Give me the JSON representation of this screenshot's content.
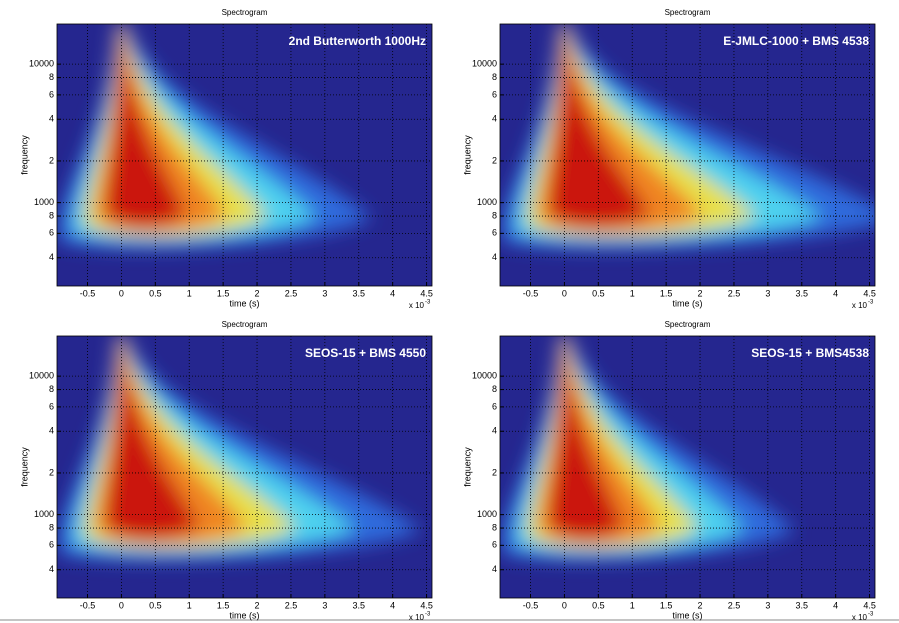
{
  "chart_data": [
    {
      "type": "heatmap",
      "title": "Spectrogram",
      "annotation": "2nd Butterworth 1000Hz",
      "xlabel": "time (s)",
      "ylabel": "frequency",
      "x_multiplier": {
        "base": "x 10",
        "power": "-3"
      },
      "xlim": [
        -0.95,
        4.58
      ],
      "xticks": [
        -0.5,
        0,
        0.5,
        1,
        1.5,
        2,
        2.5,
        3,
        3.5,
        4,
        4.5
      ],
      "ylim": [
        250,
        19500
      ],
      "log_y": true,
      "grid": true,
      "yticks": [
        {
          "value": 400,
          "label": "4"
        },
        {
          "value": 600,
          "label": "6"
        },
        {
          "value": 800,
          "label": "8"
        },
        1000,
        {
          "value": 2000,
          "label": "2"
        },
        {
          "value": 4000,
          "label": "4"
        },
        {
          "value": 6000,
          "label": "6"
        },
        {
          "value": 8000,
          "label": "8"
        },
        10000
      ]
    },
    {
      "type": "heatmap",
      "title": "Spectrogram",
      "annotation": "E-JMLC-1000 + BMS 4538",
      "xlabel": "time (s)",
      "ylabel": "frequency",
      "x_multiplier": {
        "base": "x 10",
        "power": "-3"
      },
      "xlim": [
        -0.95,
        4.58
      ],
      "xticks": [
        -0.5,
        0,
        0.5,
        1,
        1.5,
        2,
        2.5,
        3,
        3.5,
        4,
        4.5
      ],
      "ylim": [
        250,
        19500
      ],
      "log_y": true,
      "grid": true,
      "yticks": [
        {
          "value": 400,
          "label": "4"
        },
        {
          "value": 600,
          "label": "6"
        },
        {
          "value": 800,
          "label": "8"
        },
        1000,
        {
          "value": 2000,
          "label": "2"
        },
        {
          "value": 4000,
          "label": "4"
        },
        {
          "value": 6000,
          "label": "6"
        },
        {
          "value": 8000,
          "label": "8"
        },
        10000
      ]
    },
    {
      "type": "heatmap",
      "title": "Spectrogram",
      "annotation": "SEOS-15 + BMS 4550",
      "xlabel": "time (s)",
      "ylabel": "frequency",
      "x_multiplier": {
        "base": "x 10",
        "power": "-3"
      },
      "xlim": [
        -0.95,
        4.58
      ],
      "xticks": [
        -0.5,
        0,
        0.5,
        1,
        1.5,
        2,
        2.5,
        3,
        3.5,
        4,
        4.5
      ],
      "ylim": [
        250,
        19500
      ],
      "log_y": true,
      "grid": true,
      "yticks": [
        {
          "value": 400,
          "label": "4"
        },
        {
          "value": 600,
          "label": "6"
        },
        {
          "value": 800,
          "label": "8"
        },
        1000,
        {
          "value": 2000,
          "label": "2"
        },
        {
          "value": 4000,
          "label": "4"
        },
        {
          "value": 6000,
          "label": "6"
        },
        {
          "value": 8000,
          "label": "8"
        },
        10000
      ]
    },
    {
      "type": "heatmap",
      "title": "Spectrogram",
      "annotation": "SEOS-15 + BMS4538",
      "xlabel": "time (s)",
      "ylabel": "frequency",
      "x_multiplier": {
        "base": "x 10",
        "power": "-3"
      },
      "xlim": [
        -0.95,
        4.58
      ],
      "xticks": [
        -0.5,
        0,
        0.5,
        1,
        1.5,
        2,
        2.5,
        3,
        3.5,
        4,
        4.5
      ],
      "ylim": [
        250,
        19500
      ],
      "log_y": true,
      "grid": true,
      "yticks": [
        {
          "value": 400,
          "label": "4"
        },
        {
          "value": 600,
          "label": "6"
        },
        {
          "value": 800,
          "label": "8"
        },
        1000,
        {
          "value": 2000,
          "label": "2"
        },
        {
          "value": 4000,
          "label": "4"
        },
        {
          "value": 6000,
          "label": "6"
        },
        {
          "value": 8000,
          "label": "8"
        },
        10000
      ]
    }
  ]
}
